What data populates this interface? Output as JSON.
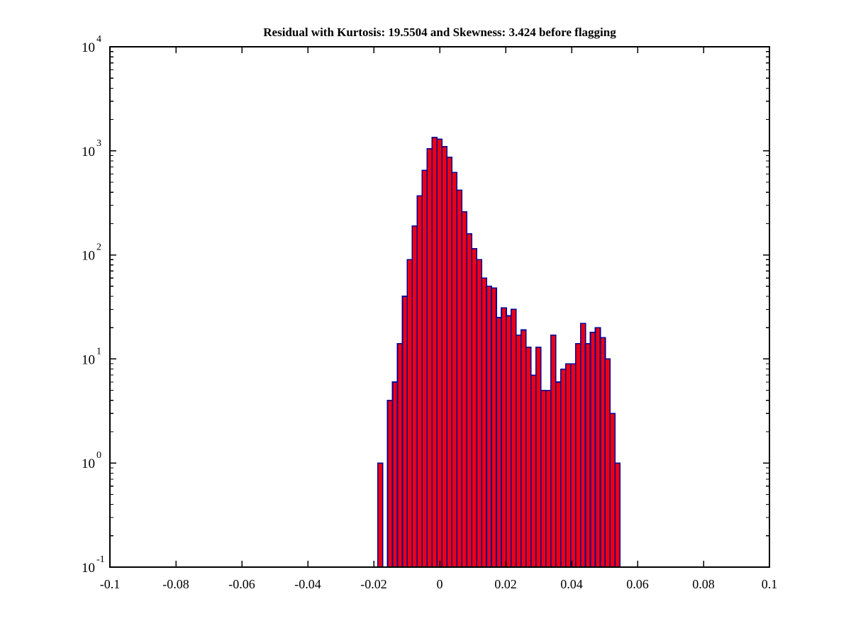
{
  "title": "Residual with Kurtosis: 19.5504 and Skewness: 3.424 before flagging",
  "chart_data": {
    "type": "bar",
    "subtype": "histogram",
    "title": "Residual with Kurtosis: 19.5504 and Skewness: 3.424 before flagging",
    "xlabel": "",
    "ylabel": "",
    "legend": "none",
    "grid": "off",
    "x_axis": {
      "range": [
        -0.1,
        0.1
      ],
      "tick_values": [
        -0.1,
        -0.08,
        -0.06,
        -0.04,
        -0.02,
        0,
        0.02,
        0.04,
        0.06,
        0.08,
        0.1
      ],
      "tick_labels": [
        "-0.1",
        "-0.08",
        "-0.06",
        "-0.04",
        "-0.02",
        "0",
        "0.02",
        "0.04",
        "0.06",
        "0.08",
        "0.1"
      ]
    },
    "y_axis": {
      "scale": "log10",
      "limits": [
        0.1,
        10000
      ],
      "mantissa_label": "10",
      "tick_exponents": [
        -1,
        0,
        1,
        2,
        3,
        4
      ],
      "minor_ticks": "log-decades"
    },
    "bins": {
      "start": -0.0188,
      "width": 0.0015,
      "count": 49
    },
    "counts": [
      1,
      0,
      4,
      6,
      14,
      40,
      90,
      190,
      370,
      650,
      1050,
      1350,
      1300,
      1100,
      870,
      620,
      420,
      260,
      160,
      115,
      90,
      60,
      50,
      48,
      25,
      31,
      26,
      30,
      17,
      19,
      13,
      7,
      13,
      5,
      5,
      17,
      6,
      8,
      9,
      9,
      14,
      22,
      14,
      18,
      20,
      16,
      10,
      3,
      1
    ],
    "style": {
      "bar_fill": "#ee0011",
      "bar_edge": "#000099",
      "axis_color": "#000000",
      "background": "#ffffff",
      "text_color": "#000000"
    }
  }
}
